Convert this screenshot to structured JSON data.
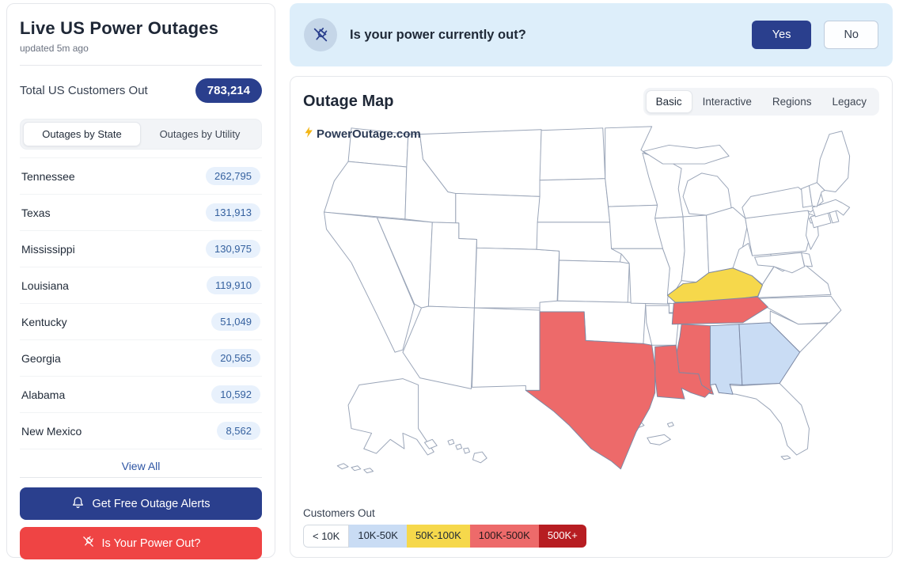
{
  "sidebar": {
    "title": "Live US Power Outages",
    "updated": "updated 5m ago",
    "total_label": "Total US Customers Out",
    "total_value": "783,214",
    "tabs": [
      {
        "label": "Outages by State",
        "active": true
      },
      {
        "label": "Outages by Utility",
        "active": false
      }
    ],
    "states": [
      {
        "name": "Tennessee",
        "value": "262,795"
      },
      {
        "name": "Texas",
        "value": "131,913"
      },
      {
        "name": "Mississippi",
        "value": "130,975"
      },
      {
        "name": "Louisiana",
        "value": "119,910"
      },
      {
        "name": "Kentucky",
        "value": "51,049"
      },
      {
        "name": "Georgia",
        "value": "20,565"
      },
      {
        "name": "Alabama",
        "value": "10,592"
      },
      {
        "name": "New Mexico",
        "value": "8,562"
      }
    ],
    "view_all_label": "View All",
    "alerts_button_label": "Get Free Outage Alerts",
    "power_out_button_label": "Is Your Power Out?"
  },
  "banner": {
    "question": "Is your power currently out?",
    "yes_label": "Yes",
    "no_label": "No"
  },
  "map_card": {
    "title": "Outage Map",
    "tabs": [
      {
        "label": "Basic",
        "active": true
      },
      {
        "label": "Interactive",
        "active": false
      },
      {
        "label": "Regions",
        "active": false
      },
      {
        "label": "Legacy",
        "active": false
      }
    ],
    "attribution": "PowerOutage.com",
    "legend_title": "Customers Out",
    "legend": [
      {
        "label": "< 10K",
        "color": "#ffffff",
        "text": "#1f2937"
      },
      {
        "label": "10K-50K",
        "color": "#c9dcf4",
        "text": "#1f2937"
      },
      {
        "label": "50K-100K",
        "color": "#f6d84b",
        "text": "#1f2937"
      },
      {
        "label": "100K-500K",
        "color": "#ed6a6a",
        "text": "#26191b"
      },
      {
        "label": "500K+",
        "color": "#b71d22",
        "text": "#ffffff"
      }
    ],
    "highlighted_states": {
      "TX": "100K-500K",
      "LA": "100K-500K",
      "MS": "100K-500K",
      "TN": "100K-500K",
      "KY": "50K-100K",
      "AL": "10K-50K",
      "GA": "10K-50K"
    }
  },
  "colors": {
    "navy": "#2a3f8d",
    "red": "#ef4444",
    "banner_bg": "#ddeefa",
    "bolt_yellow": "#f3b616",
    "map_border": "#9aa5b8"
  }
}
